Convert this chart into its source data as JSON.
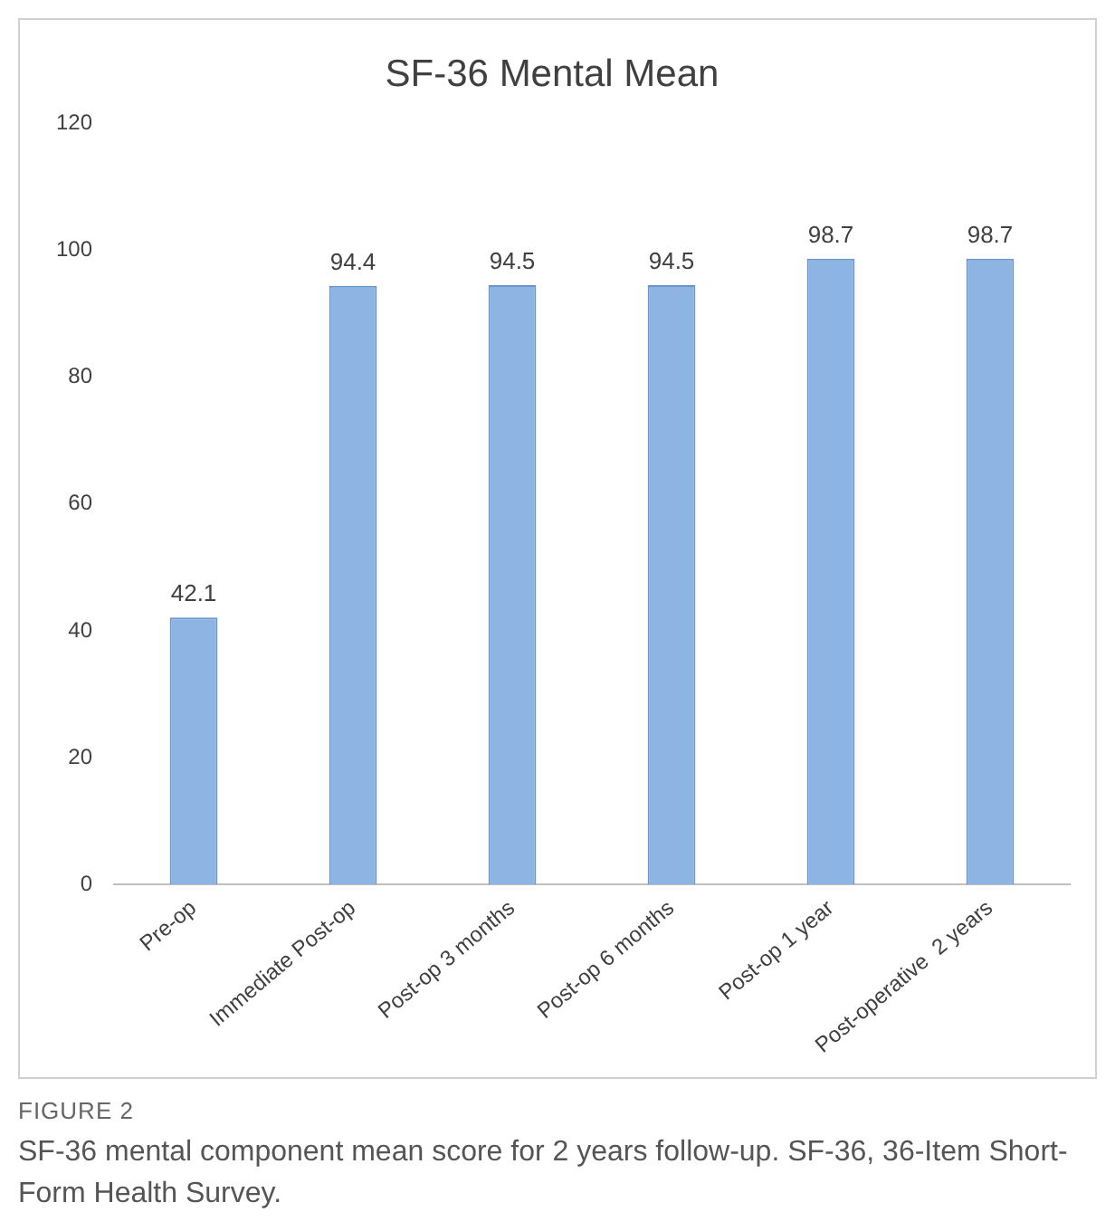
{
  "chart_data": {
    "type": "bar",
    "title": "SF-36 Mental Mean",
    "categories": [
      "Pre-op",
      "Immediate Post-op",
      "Post-op 3 months",
      "Post-op 6 months",
      "Post-op 1 year",
      "Post-operative  2 years"
    ],
    "values": [
      42.1,
      94.4,
      94.5,
      94.5,
      98.7,
      98.7
    ],
    "color": "#8eb4e3",
    "ylim": [
      0,
      120
    ],
    "yticks": [
      0,
      20,
      40,
      60,
      80,
      100,
      120
    ],
    "grid": false,
    "data_labels": true,
    "annotations": [
      "FIGURE 2",
      "SF-36 mental component mean score for 2 years follow-up. SF-36, 36-Item Short-Form Health Survey."
    ]
  }
}
